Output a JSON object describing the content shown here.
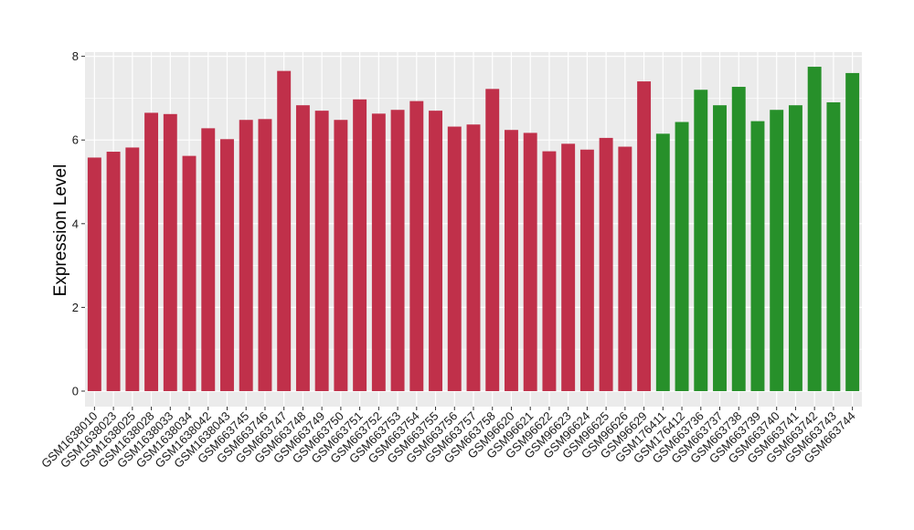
{
  "chart_data": {
    "type": "bar",
    "title": "",
    "xlabel": "",
    "ylabel": "Expression Level",
    "ylim": [
      0,
      8.3
    ],
    "yticks": [
      0,
      2,
      4,
      6,
      8
    ],
    "grid": true,
    "legend": "none",
    "colors": {
      "group_1": "#c0304a",
      "group_2": "#27902a",
      "panel_bg": "#ebebeb",
      "grid": "#ffffff"
    },
    "categories": [
      "GSM1638010",
      "GSM1638023",
      "GSM1638025",
      "GSM1638028",
      "GSM1638033",
      "GSM1638034",
      "GSM1638042",
      "GSM1638043",
      "GSM663745",
      "GSM663746",
      "GSM663747",
      "GSM663748",
      "GSM663749",
      "GSM663750",
      "GSM663751",
      "GSM663752",
      "GSM663753",
      "GSM663754",
      "GSM663755",
      "GSM663756",
      "GSM663757",
      "GSM663758",
      "GSM96620",
      "GSM96621",
      "GSM96622",
      "GSM96623",
      "GSM96624",
      "GSM96625",
      "GSM96626",
      "GSM96629",
      "GSM176411",
      "GSM176412",
      "GSM663736",
      "GSM663737",
      "GSM663738",
      "GSM663739",
      "GSM663740",
      "GSM663741",
      "GSM663742",
      "GSM663743",
      "GSM663744"
    ],
    "values": [
      5.58,
      5.72,
      5.82,
      6.65,
      6.62,
      5.62,
      6.28,
      6.02,
      6.48,
      6.5,
      7.65,
      6.83,
      6.7,
      6.48,
      6.97,
      6.63,
      6.72,
      6.93,
      6.7,
      6.32,
      6.37,
      7.22,
      6.24,
      6.17,
      5.73,
      5.91,
      5.77,
      6.05,
      5.84,
      7.4,
      6.15,
      6.43,
      7.2,
      6.83,
      7.27,
      6.45,
      6.72,
      6.83,
      7.75,
      6.9,
      7.6
    ],
    "groups": [
      1,
      1,
      1,
      1,
      1,
      1,
      1,
      1,
      1,
      1,
      1,
      1,
      1,
      1,
      1,
      1,
      1,
      1,
      1,
      1,
      1,
      1,
      1,
      1,
      1,
      1,
      1,
      1,
      1,
      1,
      2,
      2,
      2,
      2,
      2,
      2,
      2,
      2,
      2,
      2,
      2
    ]
  }
}
